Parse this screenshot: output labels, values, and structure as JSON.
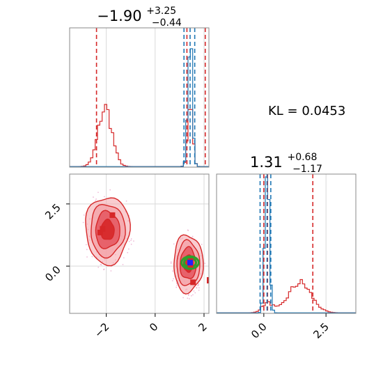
{
  "chart_data": [
    {
      "type": "histogram",
      "panel": "top-left",
      "title": {
        "main": "−1.90",
        "sup": "+3.25",
        "sub": "−0.44"
      },
      "xlim": [
        -3.5,
        2.2
      ],
      "grid": true,
      "series": [
        {
          "name": "",
          "color": "#d62728",
          "peaks": [
            {
              "center": -2.05,
              "width": 0.28,
              "height": 0.43
            },
            {
              "center": 1.43,
              "width": 0.1,
              "height": 0.47
            }
          ],
          "quantiles": [
            -2.4,
            1.3,
            2.05
          ]
        },
        {
          "name": "",
          "color": "#1f77b4",
          "peaks": [
            {
              "center": 1.43,
              "width": 0.09,
              "height": 0.95
            }
          ],
          "quantiles": [
            1.18,
            1.43,
            1.62
          ]
        }
      ]
    },
    {
      "type": "histogram",
      "panel": "bottom-right",
      "title": {
        "main": "1.31",
        "sup": "+0.68",
        "sub": "−1.17"
      },
      "xlim": [
        -1.9,
        3.7
      ],
      "grid": true,
      "x_ticks": [
        "0.0",
        "2.5"
      ],
      "x_tick_values": [
        0.0,
        2.5
      ],
      "series": [
        {
          "name": "",
          "color": "#d62728",
          "peaks": [
            {
              "center": 1.45,
              "width": 0.45,
              "height": 0.22
            },
            {
              "center": 0.15,
              "width": 0.22,
              "height": 0.07
            }
          ],
          "quantiles": [
            0.0,
            0.15,
            1.97
          ]
        },
        {
          "name": "",
          "color": "#1f77b4",
          "peaks": [
            {
              "center": 0.13,
              "width": 0.09,
              "height": 1.0
            }
          ],
          "quantiles": [
            -0.15,
            0.13,
            0.28
          ]
        }
      ]
    },
    {
      "type": "contour",
      "panel": "bottom-left",
      "xlim": [
        -3.5,
        2.2
      ],
      "ylim": [
        -1.9,
        3.7
      ],
      "grid": true,
      "x_ticks": [
        "−2",
        "0",
        "2"
      ],
      "x_tick_values": [
        -2,
        0,
        2
      ],
      "y_ticks": [
        "0.0",
        "2.5"
      ],
      "y_tick_values": [
        0.0,
        2.5
      ],
      "red_modes": [
        {
          "center": [
            -1.95,
            1.45
          ],
          "radius": [
            0.9,
            1.35
          ]
        },
        {
          "center": [
            1.35,
            0.1
          ],
          "radius": [
            0.6,
            1.15
          ]
        }
      ],
      "green_mode": {
        "center": [
          1.43,
          0.14
        ],
        "radius": [
          0.35,
          0.25
        ]
      },
      "red_markers": [
        [
          -2.25,
          1.35
        ],
        [
          -2.15,
          1.5
        ],
        [
          -1.75,
          2.05
        ],
        [
          1.45,
          0.2
        ],
        [
          1.45,
          0.05
        ],
        [
          1.55,
          -0.65
        ]
      ],
      "blue_marker": [
        1.43,
        0.14
      ],
      "colors": {
        "red": "#d62728",
        "red_fill": "#f4a3a8",
        "green": "#2ca02c",
        "blue": "#1f1fff"
      }
    }
  ],
  "annotation": {
    "kl_text": "KL = 0.0453"
  }
}
